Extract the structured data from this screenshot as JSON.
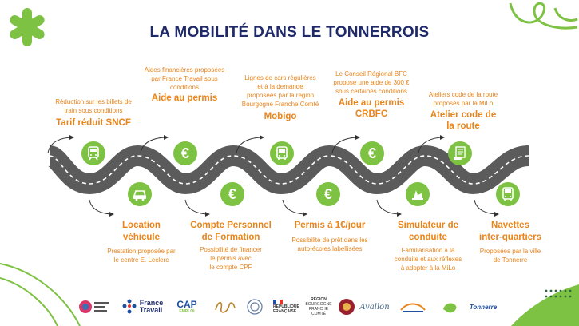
{
  "title": "LA MOBILITÉ DANS LE TONNERROIS",
  "colors": {
    "accent": "#e8841a",
    "green": "#7dc242",
    "navy": "#1f2a6b",
    "road": "#5b5b5b"
  },
  "top_items": [
    {
      "desc": [
        "Réduction sur les billets de",
        "train sous conditions"
      ],
      "heading": [
        "Tarif réduit SNCF"
      ],
      "icon": "train-icon"
    },
    {
      "desc": [
        "Aides financières proposées",
        "par France Travail sous",
        "conditions"
      ],
      "heading": [
        "Aide au permis"
      ],
      "icon": "euro-icon"
    },
    {
      "desc": [
        "Lignes de cars régulières",
        "et à la demande",
        "proposées par la région",
        "Bourgogne Franche Comté"
      ],
      "heading": [
        "Mobigo"
      ],
      "icon": "bus-icon"
    },
    {
      "desc": [
        "Le Conseil Régional BFC",
        "propose une aide de 300 €",
        "sous certaines conditions"
      ],
      "heading": [
        "Aide au permis",
        "CRBFC"
      ],
      "icon": "euro-icon"
    },
    {
      "desc": [
        "Ateliers code de la route",
        "proposés par la MiLo"
      ],
      "heading": [
        "Atelier code de",
        "la route"
      ],
      "icon": "code-atelier-icon"
    }
  ],
  "bottom_items": [
    {
      "heading": [
        "Location",
        "véhicule"
      ],
      "desc": [
        "Prestation proposée par",
        "le centre E. Leclerc"
      ],
      "icon": "car-icon"
    },
    {
      "heading": [
        "Compte Personnel",
        "de Formation"
      ],
      "desc": [
        "Possibilité de financer",
        "le permis avec",
        "le compte CPF"
      ],
      "icon": "euro-icon"
    },
    {
      "heading": [
        "Permis à 1€/jour"
      ],
      "desc": [
        "Possibilité de prêt dans les",
        "auto-écoles labellisées"
      ],
      "icon": "euro-icon"
    },
    {
      "heading": [
        "Simulateur de",
        "conduite"
      ],
      "desc": [
        "Familiarisation à la",
        "conduite et aux réflexes",
        "à adopter à la MiLo"
      ],
      "icon": "simulator-icon"
    },
    {
      "heading": [
        "Navettes",
        "inter-quartiers"
      ],
      "desc": [
        "Proposées par la ville",
        "de Tonnerre"
      ],
      "icon": "bus-icon"
    }
  ],
  "partners": {
    "france_travail": [
      "France",
      "Travail"
    ],
    "cap_emploi": [
      "CAP",
      "EMPLOI"
    ],
    "republique": [
      "RÉPUBLIQUE",
      "FRANÇAISE"
    ],
    "region": [
      "RÉGION",
      "BOURGOGNE",
      "FRANCHE",
      "COMTÉ"
    ],
    "avallon": "Avallon",
    "tonnerre": "Tonnerre"
  }
}
